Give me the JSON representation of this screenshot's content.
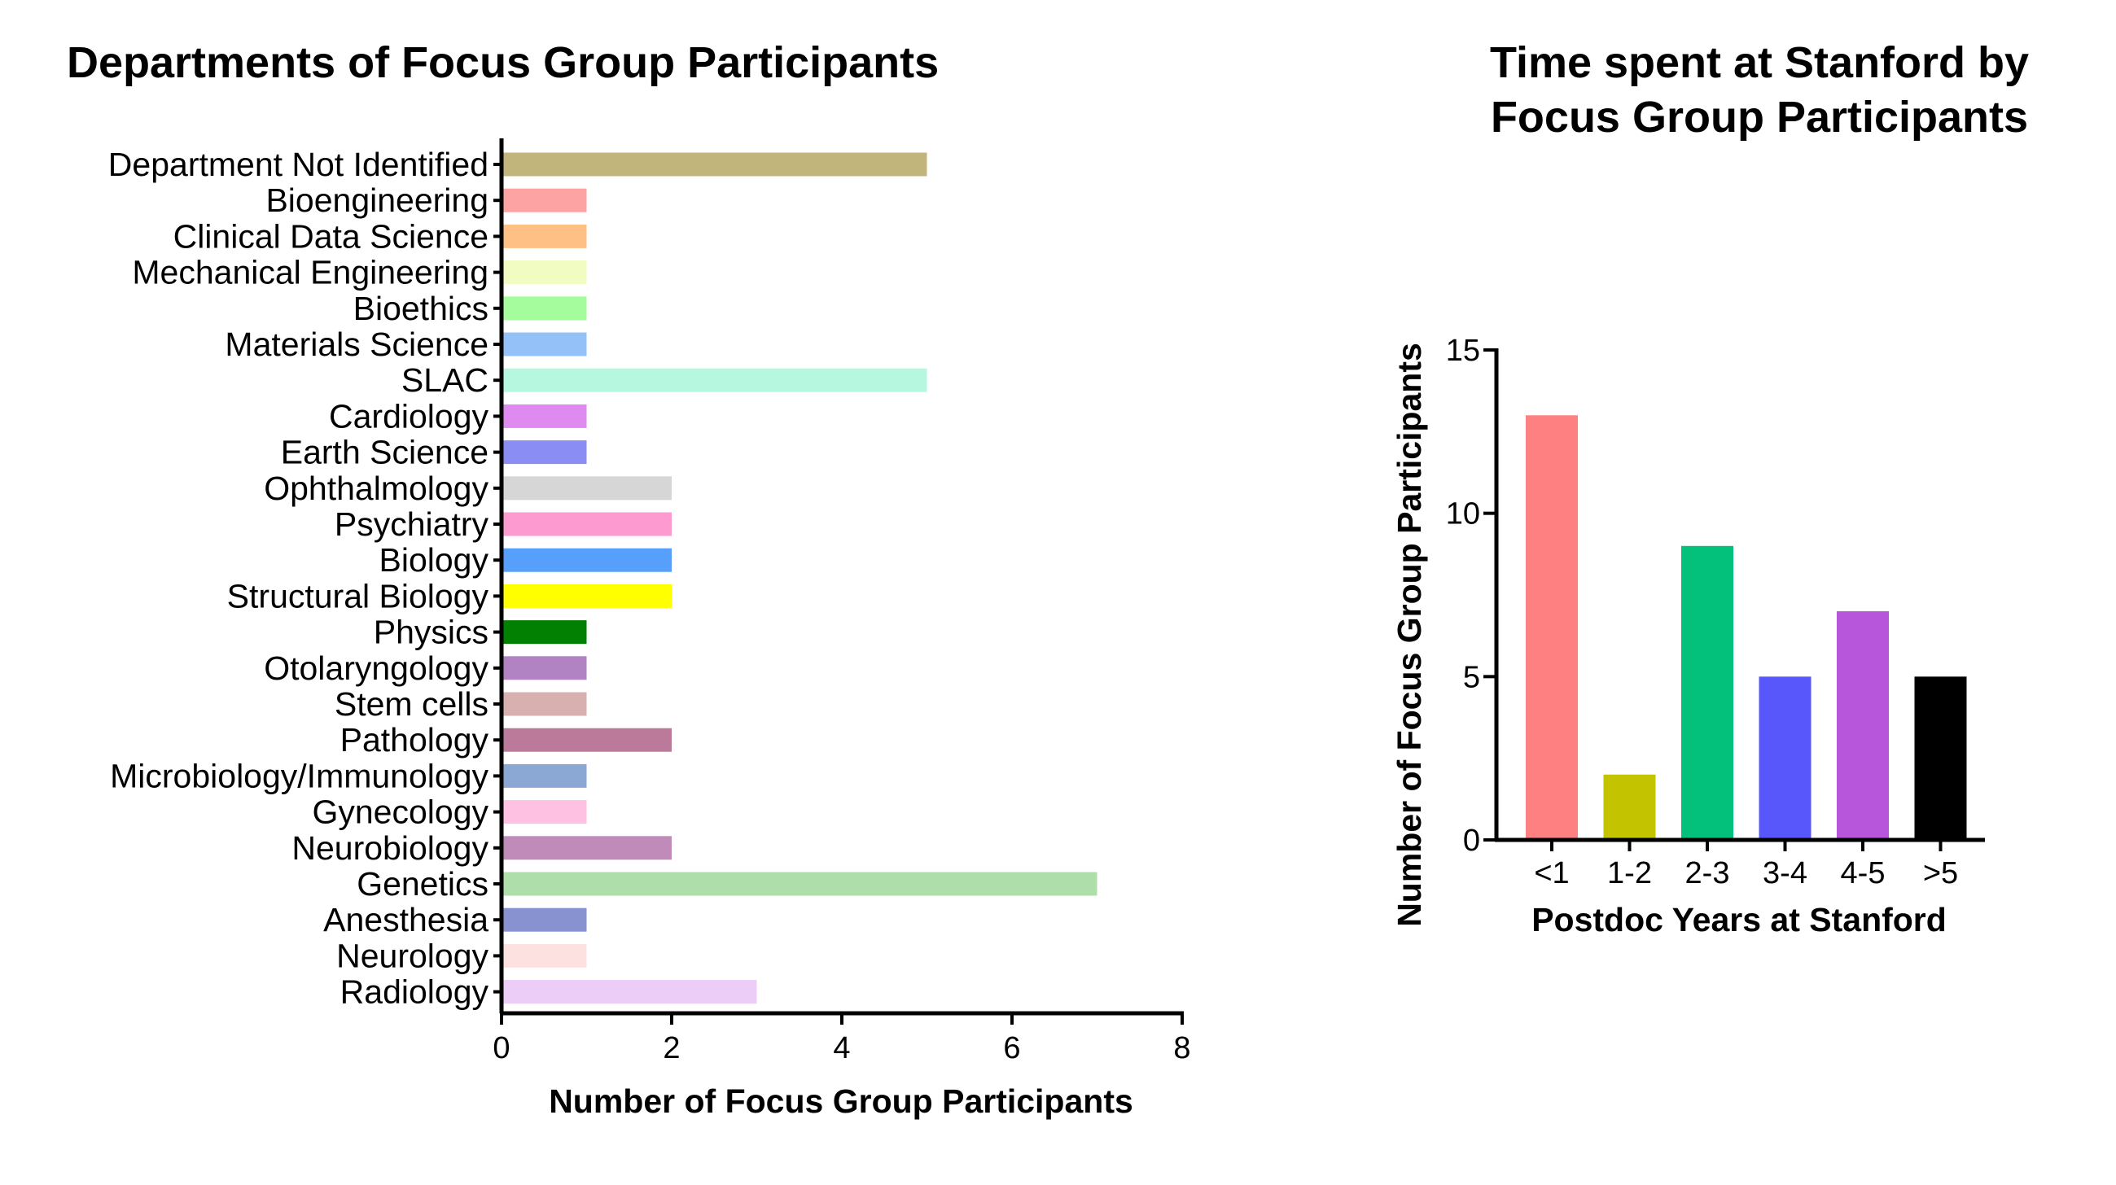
{
  "chart_data": [
    {
      "type": "bar",
      "orientation": "horizontal",
      "title": "Departments of Focus Group Participants",
      "xlabel": "Number of Focus Group Participants",
      "ylabel": "",
      "xlim": [
        0,
        8
      ],
      "xticks": [
        "0",
        "2",
        "4",
        "6",
        "8"
      ],
      "grid": false,
      "categories": [
        "Department Not Identified",
        "Bioengineering",
        "Clinical Data Science",
        "Mechanical Engineering",
        "Bioethics",
        "Materials Science",
        "SLAC",
        "Cardiology",
        "Earth Science",
        "Ophthalmology",
        "Psychiatry",
        "Biology",
        "Structural Biology",
        "Physics",
        "Otolaryngology",
        "Stem cells",
        "Pathology",
        "Microbiology/Immunology",
        "Gynecology",
        "Neurobiology",
        "Genetics",
        "Anesthesia",
        "Neurology",
        "Radiology"
      ],
      "values": [
        5,
        1,
        1,
        1,
        1,
        1,
        5,
        1,
        1,
        2,
        2,
        2,
        2,
        1,
        1,
        1,
        2,
        1,
        1,
        2,
        7,
        1,
        1,
        3
      ],
      "colors": [
        "#c2b57c",
        "#fea3a3",
        "#fec084",
        "#f0fcc1",
        "#a5fc9d",
        "#94c1f7",
        "#b6f7e0",
        "#df8af1",
        "#8a8df3",
        "#d6d6d6",
        "#fd9ad0",
        "#569ffb",
        "#ffff00",
        "#018001",
        "#b183c2",
        "#d7b0af",
        "#bc7a9a",
        "#8ba8d4",
        "#fec1e1",
        "#c18bb9",
        "#aedfab",
        "#8992d1",
        "#fde1e1",
        "#ebcdf8"
      ]
    },
    {
      "type": "bar",
      "title": "Time spent at Stanford by Focus Group Participants",
      "title_lines": [
        "Time spent at Stanford by",
        "Focus Group Participants"
      ],
      "xlabel": "Postdoc Years at  Stanford",
      "ylabel": "Number of Focus Group Participants",
      "ylim": [
        0,
        15
      ],
      "yticks": [
        "0",
        "5",
        "10",
        "15"
      ],
      "grid": false,
      "categories": [
        "<1",
        "1-2",
        "2-3",
        "3-4",
        "4-5",
        ">5"
      ],
      "values": [
        13,
        2,
        9,
        5,
        7,
        5
      ],
      "colors": [
        "#fe8080",
        "#c3c300",
        "#03c07b",
        "#5757fb",
        "#b756db",
        "#000000"
      ]
    }
  ]
}
